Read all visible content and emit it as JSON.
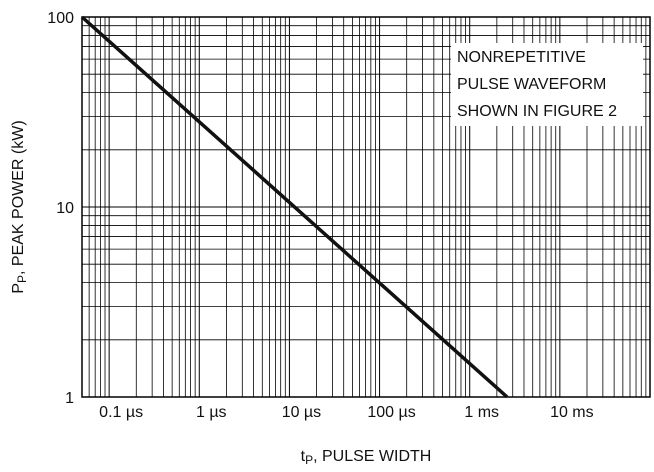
{
  "chart_data": {
    "type": "line",
    "x_scale": "log",
    "y_scale": "log",
    "xlim_us": [
      0.05,
      100000
    ],
    "ylim_kW": [
      1,
      100
    ],
    "grid": true,
    "xlabel": {
      "prefix": "t",
      "sub": "P",
      "rest": ", PULSE WIDTH"
    },
    "ylabel": {
      "prefix": "P",
      "sub": "P",
      "rest": ", PEAK POWER (kW)"
    },
    "y_ticks": [
      {
        "value": 1,
        "label": "1"
      },
      {
        "value": 10,
        "label": "10"
      },
      {
        "value": 100,
        "label": "100"
      }
    ],
    "x_ticks": [
      {
        "value": 0.1,
        "label": "0.1 µs"
      },
      {
        "value": 1,
        "label": "1 µs"
      },
      {
        "value": 10,
        "label": "10 µs"
      },
      {
        "value": 100,
        "label": "100 µs"
      },
      {
        "value": 1000,
        "label": "1 ms"
      },
      {
        "value": 10000,
        "label": "10 ms"
      }
    ],
    "series": [
      {
        "x": [
          0.05,
          2600
        ],
        "y": [
          100,
          1
        ],
        "color": "#111111"
      }
    ],
    "annotation": [
      "NONREPETITIVE",
      "PULSE WAVEFORM",
      "SHOWN IN FIGURE 2"
    ]
  }
}
